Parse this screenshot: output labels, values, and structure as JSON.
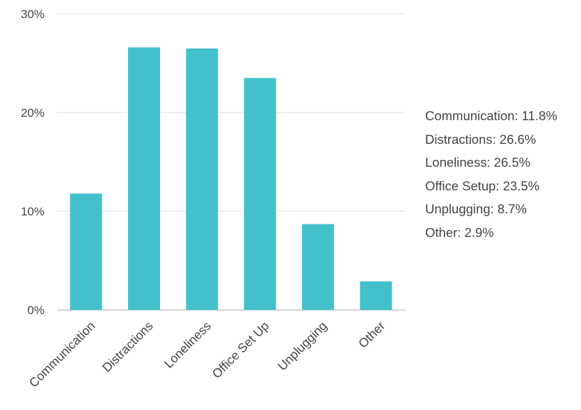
{
  "chart_data": {
    "type": "bar",
    "categories": [
      "Communication",
      "Distractions",
      "Loneliness",
      "Office Set Up",
      "Unplugging",
      "Other"
    ],
    "values": [
      11.8,
      26.6,
      26.5,
      23.5,
      8.7,
      2.9
    ],
    "y_ticks": [
      "0%",
      "10%",
      "20%",
      "30%"
    ],
    "ylim": [
      0,
      30
    ],
    "bar_color": "#42C1CC",
    "grid": true,
    "legend_position": "right",
    "legend_lines": [
      "Communication: 11.8%",
      "Distractions: 26.6%",
      "Loneliness: 26.5%",
      "Office Setup: 23.5%",
      "Unplugging: 8.7%",
      "Other: 2.9%"
    ]
  }
}
